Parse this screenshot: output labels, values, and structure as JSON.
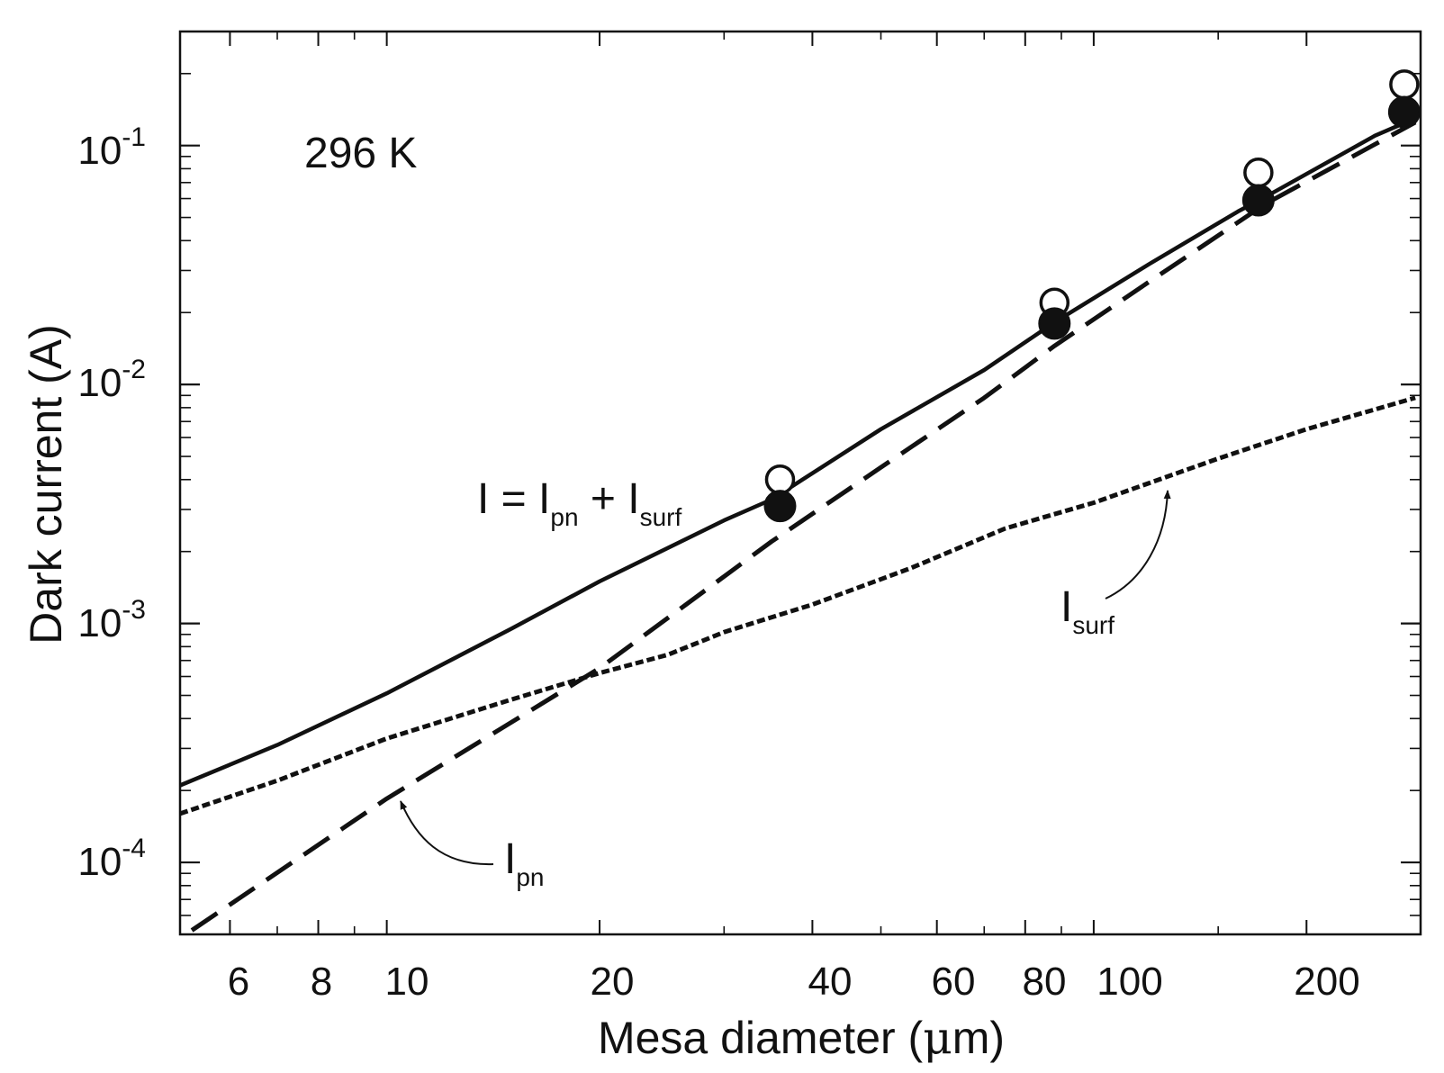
{
  "chart_data": {
    "type": "line",
    "title": "",
    "xlabel_prefix": "Mesa diameter (",
    "xlabel_mu": "μ",
    "xlabel_suffix": "m)",
    "ylabel": "Dark current (A)",
    "xscale": "log",
    "yscale": "log",
    "xlim": [
      5.1,
      290
    ],
    "ylim": [
      5e-05,
      0.3
    ],
    "x_ticks": [
      {
        "value": 6,
        "label": "6"
      },
      {
        "value": 8,
        "label": "8"
      },
      {
        "value": 10,
        "label": "10"
      },
      {
        "value": 20,
        "label": "20"
      },
      {
        "value": 40,
        "label": "40"
      },
      {
        "value": 60,
        "label": "60"
      },
      {
        "value": 80,
        "label": "80"
      },
      {
        "value": 100,
        "label": "100"
      },
      {
        "value": 200,
        "label": "200"
      }
    ],
    "y_ticks": [
      {
        "value": 0.0001,
        "base": "10",
        "exp": "-4"
      },
      {
        "value": 0.001,
        "base": "10",
        "exp": "-3"
      },
      {
        "value": 0.01,
        "base": "10",
        "exp": "-2"
      },
      {
        "value": 0.1,
        "base": "10",
        "exp": "-1"
      }
    ],
    "temperature_label": "296 K",
    "series": [
      {
        "name": "I = Ipn + Isurf",
        "style": "solid",
        "x": [
          5.1,
          7,
          10,
          15,
          20,
          30,
          35,
          50,
          70,
          88,
          120,
          160,
          175,
          250,
          285
        ],
        "y": [
          0.00021,
          0.00031,
          0.00051,
          0.00095,
          0.0015,
          0.0027,
          0.0033,
          0.0065,
          0.0115,
          0.0182,
          0.032,
          0.053,
          0.061,
          0.11,
          0.13
        ]
      },
      {
        "name": "Ipn",
        "style": "dashed",
        "x": [
          5.3,
          10,
          20,
          35,
          50,
          70,
          88,
          120,
          175,
          285
        ],
        "y": [
          5.2e-05,
          0.000185,
          0.00065,
          0.0022,
          0.0045,
          0.0088,
          0.0145,
          0.027,
          0.057,
          0.125
        ]
      },
      {
        "name": "Isurf",
        "style": "dotted",
        "x": [
          5.1,
          7,
          10,
          15,
          20,
          25,
          30,
          40,
          55,
          75,
          100,
          150,
          200,
          285
        ],
        "y": [
          0.00016,
          0.00022,
          0.00033,
          0.00048,
          0.00062,
          0.00074,
          0.00092,
          0.0012,
          0.0017,
          0.0025,
          0.0032,
          0.0049,
          0.0065,
          0.0088
        ]
      },
      {
        "name": "measured (open circles)",
        "style": "marker-open",
        "x": [
          36,
          88,
          171,
          275
        ],
        "y": [
          0.004,
          0.022,
          0.077,
          0.18
        ]
      },
      {
        "name": "measured (filled circles)",
        "style": "marker-filled",
        "x": [
          36,
          88,
          171,
          275
        ],
        "y": [
          0.0031,
          0.018,
          0.059,
          0.138
        ]
      }
    ],
    "annotations": {
      "equation": {
        "a": "I = I",
        "sub1": "pn",
        "b": " + I",
        "sub2": "surf"
      },
      "ipn_label": {
        "main": "I",
        "sub": "pn"
      },
      "isurf_label": {
        "main": "I",
        "sub": "surf"
      }
    }
  }
}
